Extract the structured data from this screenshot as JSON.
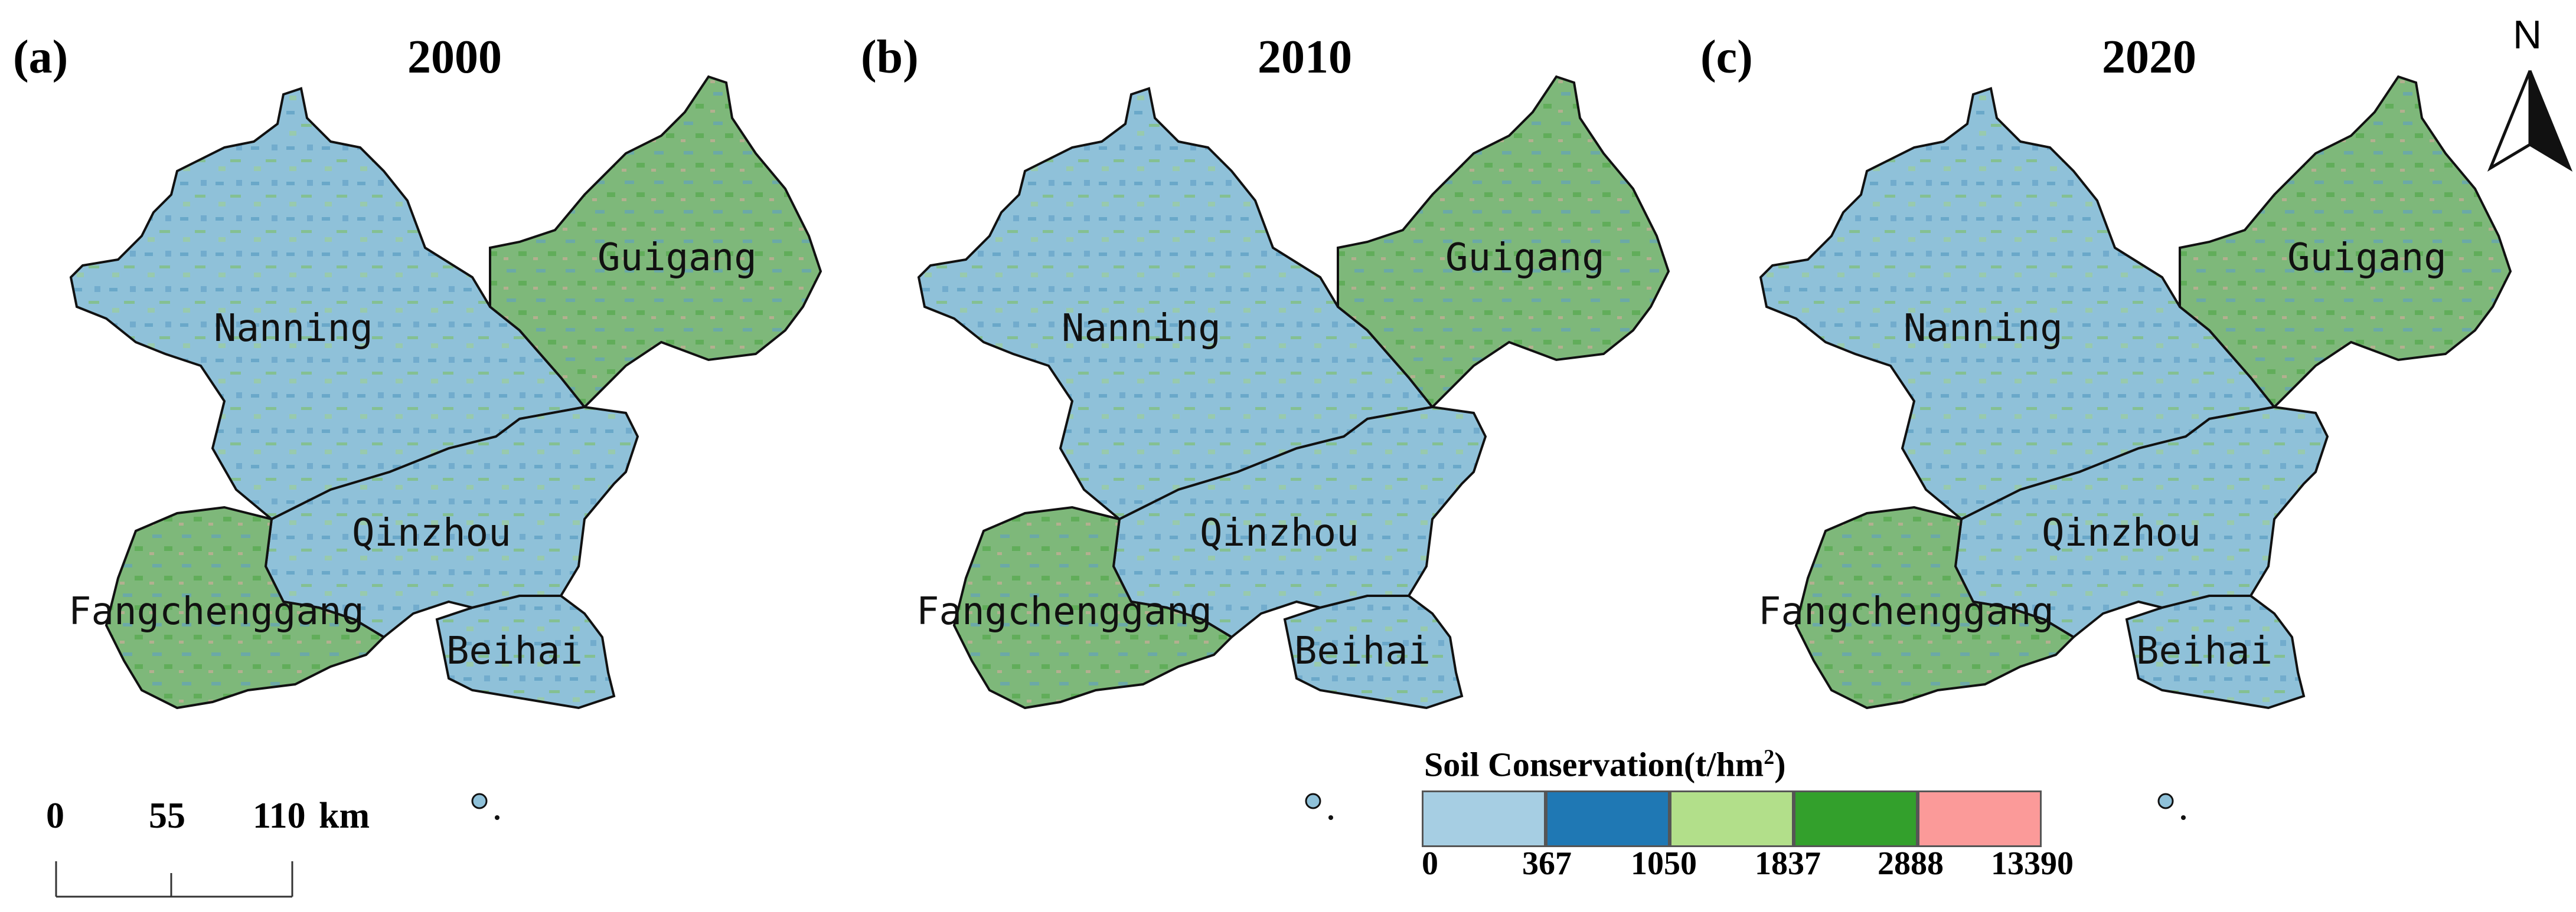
{
  "panels": [
    {
      "letter": "(a)",
      "year": "2000"
    },
    {
      "letter": "(b)",
      "year": "2010"
    },
    {
      "letter": "(c)",
      "year": "2020"
    }
  ],
  "cities": [
    "Nanning",
    "Guigang",
    "Qinzhou",
    "Fangchenggang",
    "Beihai"
  ],
  "legend": {
    "title": "Soil Conservation(t/hm",
    "title_sup": "2",
    "title_close": ")",
    "ticks": [
      "0",
      "367",
      "1050",
      "1837",
      "2888",
      "13390"
    ],
    "colors": [
      "#a6cee3",
      "#1f78b4",
      "#b2df8a",
      "#33a02c",
      "#fb9a99"
    ]
  },
  "scale_bar": {
    "ticks": [
      "0",
      "55",
      "110"
    ],
    "unit": "km"
  },
  "north_arrow": {
    "label": "N"
  },
  "map_colors": {
    "base": "#8fc1d9",
    "mid": "#5f9fc4",
    "green": "#7fbf73",
    "red": "#e7a6a3",
    "outline": "#111111"
  }
}
